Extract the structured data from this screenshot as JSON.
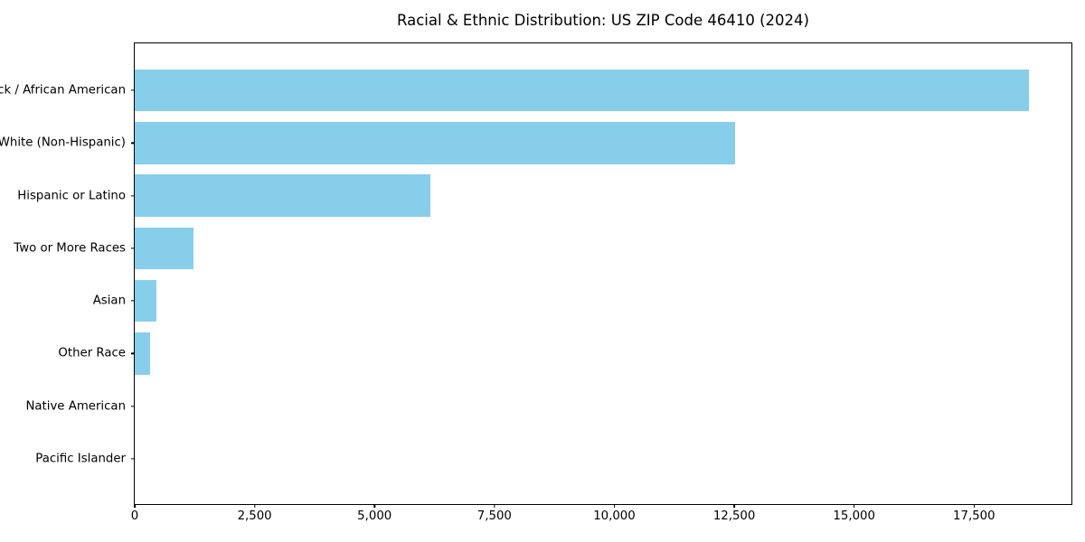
{
  "chart_data": {
    "type": "bar",
    "orientation": "horizontal",
    "title": "Racial & Ethnic Distribution: US ZIP Code 46410 (2024)",
    "categories": [
      "Black / African American",
      "White (Non-Hispanic)",
      "Hispanic or Latino",
      "Two or More Races",
      "Asian",
      "Other Race",
      "Native American",
      "Pacific Islander"
    ],
    "values": [
      18600,
      12500,
      6150,
      1220,
      450,
      320,
      0,
      0
    ],
    "xlabel": "",
    "ylabel": "",
    "xlim": [
      0,
      19530
    ],
    "xticks": [
      0,
      2500,
      5000,
      7500,
      10000,
      12500,
      15000,
      17500
    ],
    "xtick_labels": [
      "0",
      "2,500",
      "5,000",
      "7,500",
      "10,000",
      "12,500",
      "15,000",
      "17,500"
    ],
    "bar_color": "#87CEEB",
    "grid": false,
    "legend_position": "none",
    "background_color": "#ffffff"
  }
}
